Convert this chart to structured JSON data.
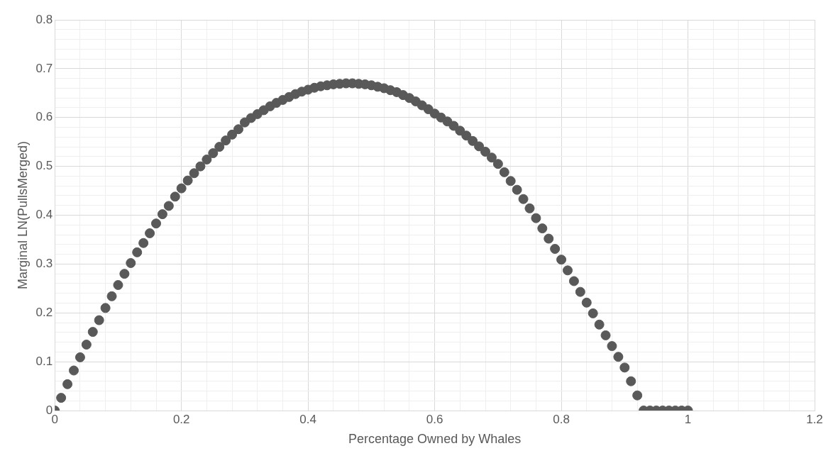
{
  "chart_data": {
    "type": "scatter",
    "xlabel": "Percentage Owned by Whales",
    "ylabel": "Marginal LN(PullsMerged)",
    "x": [
      0,
      0.01,
      0.02,
      0.03,
      0.04,
      0.05,
      0.06,
      0.07,
      0.08,
      0.09,
      0.1,
      0.11,
      0.12,
      0.13,
      0.14,
      0.15,
      0.16,
      0.17,
      0.18,
      0.19,
      0.2,
      0.21,
      0.22,
      0.23,
      0.24,
      0.25,
      0.26,
      0.27,
      0.28,
      0.29,
      0.3,
      0.31,
      0.32,
      0.33,
      0.34,
      0.35,
      0.36,
      0.37,
      0.38,
      0.39,
      0.4,
      0.41,
      0.42,
      0.43,
      0.44,
      0.45,
      0.46,
      0.47,
      0.48,
      0.49,
      0.5,
      0.51,
      0.52,
      0.53,
      0.54,
      0.55,
      0.56,
      0.57,
      0.58,
      0.59,
      0.6,
      0.61,
      0.62,
      0.63,
      0.64,
      0.65,
      0.66,
      0.67,
      0.68,
      0.69,
      0.7,
      0.71,
      0.72,
      0.73,
      0.74,
      0.75,
      0.76,
      0.77,
      0.78,
      0.79,
      0.8,
      0.81,
      0.82,
      0.83,
      0.84,
      0.85,
      0.86,
      0.87,
      0.88,
      0.89,
      0.9,
      0.91,
      0.92,
      0.93,
      0.94,
      0.95,
      0.96,
      0.97,
      0.98,
      0.99,
      1
    ],
    "series": [
      {
        "color": "#595959",
        "values": [
          0,
          0.026,
          0.054,
          0.082,
          0.109,
          0.135,
          0.161,
          0.185,
          0.21,
          0.234,
          0.257,
          0.28,
          0.302,
          0.324,
          0.343,
          0.363,
          0.383,
          0.402,
          0.419,
          0.438,
          0.455,
          0.471,
          0.486,
          0.5,
          0.514,
          0.527,
          0.54,
          0.553,
          0.565,
          0.576,
          0.59,
          0.599,
          0.607,
          0.615,
          0.623,
          0.63,
          0.636,
          0.642,
          0.648,
          0.653,
          0.657,
          0.661,
          0.664,
          0.666,
          0.668,
          0.669,
          0.67,
          0.67,
          0.669,
          0.668,
          0.666,
          0.663,
          0.66,
          0.656,
          0.652,
          0.646,
          0.64,
          0.633,
          0.625,
          0.617,
          0.608,
          0.6,
          0.592,
          0.583,
          0.573,
          0.563,
          0.552,
          0.541,
          0.53,
          0.518,
          0.505,
          0.488,
          0.47,
          0.452,
          0.433,
          0.414,
          0.394,
          0.373,
          0.352,
          0.331,
          0.309,
          0.287,
          0.265,
          0.243,
          0.221,
          0.199,
          0.176,
          0.154,
          0.132,
          0.11,
          0.088,
          0.06,
          0.031,
          0,
          0,
          0,
          0,
          0,
          0,
          0,
          0
        ]
      }
    ],
    "xlim": [
      0,
      1.2
    ],
    "ylim": [
      0,
      0.8
    ],
    "xticks": [
      0,
      {
        "value": 0.04,
        "label": null
      },
      {
        "value": 0.08,
        "label": null
      },
      {
        "value": 0.12,
        "label": null
      },
      {
        "value": 0.16,
        "label": null
      },
      0.2,
      {
        "value": 0.24,
        "label": null
      },
      {
        "value": 0.28,
        "label": null
      },
      {
        "value": 0.32,
        "label": null
      },
      {
        "value": 0.36,
        "label": null
      },
      0.4,
      {
        "value": 0.44,
        "label": null
      },
      {
        "value": 0.48,
        "label": null
      },
      {
        "value": 0.52,
        "label": null
      },
      {
        "value": 0.56,
        "label": null
      },
      0.6,
      {
        "value": 0.64,
        "label": null
      },
      {
        "value": 0.68,
        "label": null
      },
      {
        "value": 0.72,
        "label": null
      },
      {
        "value": 0.76,
        "label": null
      },
      0.8,
      {
        "value": 0.84,
        "label": null
      },
      {
        "value": 0.88,
        "label": null
      },
      {
        "value": 0.92,
        "label": null
      },
      {
        "value": 0.96,
        "label": null
      },
      1,
      {
        "value": 1.04,
        "label": null
      },
      {
        "value": 1.08,
        "label": null
      },
      {
        "value": 1.12,
        "label": null
      },
      {
        "value": 1.16,
        "label": null
      },
      1.2
    ],
    "yticks": [
      0,
      {
        "value": 0.02,
        "label": null
      },
      {
        "value": 0.04,
        "label": null
      },
      {
        "value": 0.06,
        "label": null
      },
      {
        "value": 0.08,
        "label": null
      },
      0.1,
      {
        "value": 0.12,
        "label": null
      },
      {
        "value": 0.14,
        "label": null
      },
      {
        "value": 0.16,
        "label": null
      },
      {
        "value": 0.18,
        "label": null
      },
      0.2,
      {
        "value": 0.22,
        "label": null
      },
      {
        "value": 0.24,
        "label": null
      },
      {
        "value": 0.26,
        "label": null
      },
      {
        "value": 0.28,
        "label": null
      },
      0.3,
      {
        "value": 0.32,
        "label": null
      },
      {
        "value": 0.34,
        "label": null
      },
      {
        "value": 0.36,
        "label": null
      },
      {
        "value": 0.38,
        "label": null
      },
      0.4,
      {
        "value": 0.42,
        "label": null
      },
      {
        "value": 0.44,
        "label": null
      },
      {
        "value": 0.46,
        "label": null
      },
      {
        "value": 0.48,
        "label": null
      },
      0.5,
      {
        "value": 0.52,
        "label": null
      },
      {
        "value": 0.54,
        "label": null
      },
      {
        "value": 0.56,
        "label": null
      },
      {
        "value": 0.58,
        "label": null
      },
      0.6,
      {
        "value": 0.62,
        "label": null
      },
      {
        "value": 0.64,
        "label": null
      },
      {
        "value": 0.66,
        "label": null
      },
      {
        "value": 0.68,
        "label": null
      },
      0.7,
      {
        "value": 0.72,
        "label": null
      },
      {
        "value": 0.74,
        "label": null
      },
      {
        "value": 0.76,
        "label": null
      },
      {
        "value": 0.78,
        "label": null
      },
      0.8
    ],
    "grid": true,
    "legend": false,
    "marker": "circle"
  }
}
